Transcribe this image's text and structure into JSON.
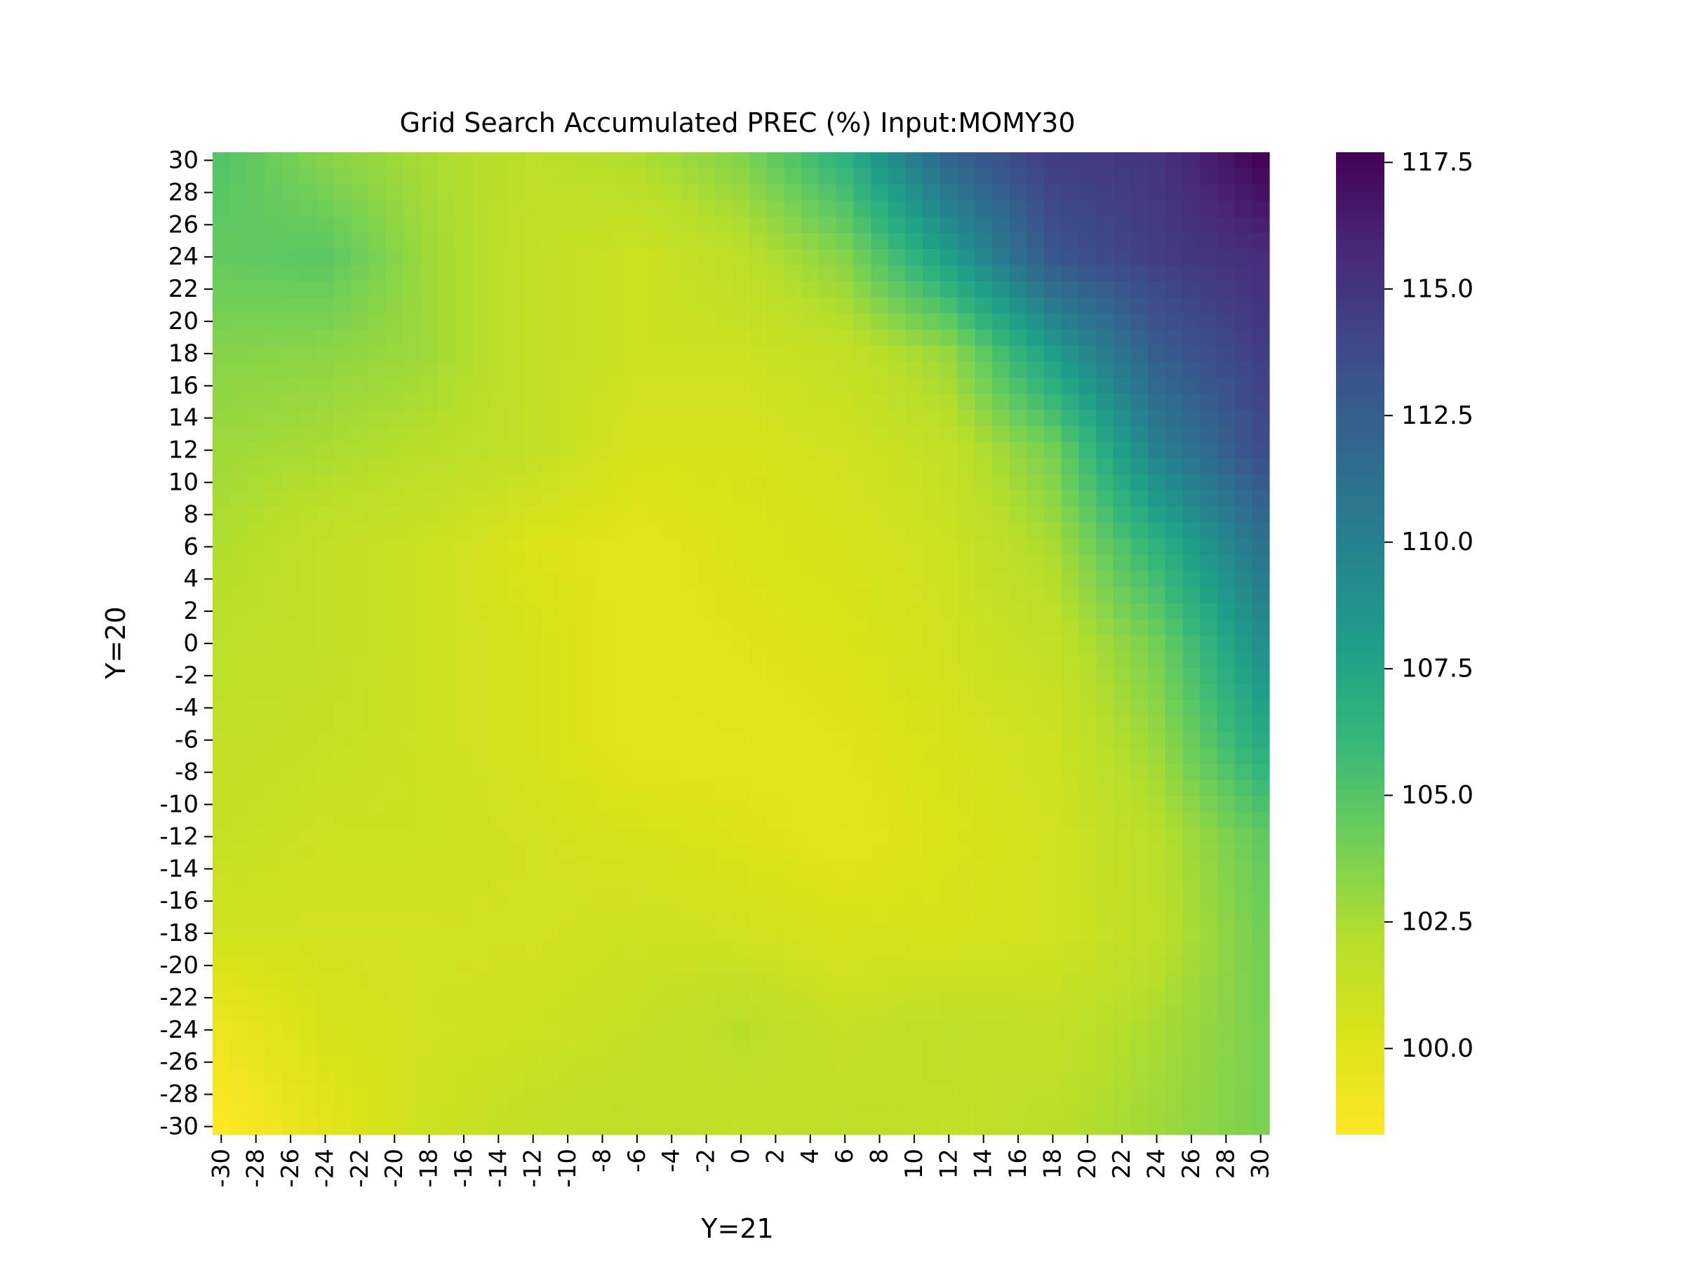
{
  "chart_data": {
    "type": "heatmap",
    "title": "Grid Search Accumulated PREC (%) Input:MOMY30",
    "xlabel": "Y=21",
    "ylabel": "Y=20",
    "x_range": [
      -30,
      30
    ],
    "y_range": [
      -30,
      30
    ],
    "x_tick_labels": [
      "-30",
      "-28",
      "-26",
      "-24",
      "-22",
      "-20",
      "-18",
      "-16",
      "-14",
      "-12",
      "-10",
      "-8",
      "-6",
      "-4",
      "-2",
      "0",
      "2",
      "4",
      "6",
      "8",
      "10",
      "12",
      "14",
      "16",
      "18",
      "20",
      "22",
      "24",
      "26",
      "28",
      "30"
    ],
    "y_tick_labels": [
      "30",
      "28",
      "26",
      "24",
      "22",
      "20",
      "18",
      "16",
      "14",
      "12",
      "10",
      "8",
      "6",
      "4",
      "2",
      "0",
      "-2",
      "-4",
      "-6",
      "-8",
      "-10",
      "-12",
      "-14",
      "-16",
      "-18",
      "-20",
      "-22",
      "-24",
      "-26",
      "-28",
      "-30"
    ],
    "colorbar": {
      "colormap": "viridis_r",
      "vmin": 98.3,
      "vmax": 117.7,
      "tick_labels": [
        "100.0",
        "102.5",
        "105.0",
        "107.5",
        "110.0",
        "112.5",
        "115.0",
        "117.5"
      ],
      "tick_values": [
        100.0,
        102.5,
        105.0,
        107.5,
        110.0,
        112.5,
        115.0,
        117.5
      ]
    },
    "grid": false,
    "colorbar_placement": "right",
    "anchor_rows_note_y_values": [
      30,
      24,
      18,
      12,
      6,
      0,
      -6,
      -12,
      -18,
      -24,
      -30
    ],
    "anchor_cols_x_values": [
      -30,
      -24,
      -18,
      -12,
      -6,
      0,
      6,
      12,
      18,
      24,
      30
    ],
    "anchor_values": [
      [
        105.0,
        103.5,
        102.5,
        101.8,
        102.3,
        103.5,
        106.5,
        112.0,
        114.5,
        115.0,
        117.5
      ],
      [
        104.5,
        104.8,
        102.8,
        101.5,
        101.0,
        101.8,
        103.5,
        108.0,
        113.0,
        114.5,
        115.5
      ],
      [
        103.5,
        103.3,
        102.8,
        101.5,
        101.0,
        101.0,
        101.5,
        103.0,
        108.0,
        112.5,
        114.5
      ],
      [
        102.8,
        102.5,
        102.0,
        101.5,
        100.5,
        100.5,
        100.8,
        101.5,
        104.0,
        110.0,
        113.5
      ],
      [
        102.3,
        101.5,
        101.0,
        100.2,
        99.8,
        100.3,
        100.5,
        101.0,
        102.5,
        106.5,
        111.0
      ],
      [
        101.8,
        101.5,
        101.0,
        100.5,
        99.8,
        100.0,
        100.3,
        100.8,
        101.5,
        104.0,
        109.0
      ],
      [
        101.5,
        101.3,
        101.0,
        100.5,
        99.8,
        99.8,
        100.0,
        100.5,
        101.0,
        103.0,
        107.0
      ],
      [
        101.3,
        101.0,
        101.0,
        100.8,
        100.5,
        100.2,
        99.8,
        100.3,
        100.8,
        102.0,
        104.5
      ],
      [
        100.8,
        100.8,
        100.8,
        100.8,
        101.0,
        100.8,
        100.5,
        100.5,
        100.8,
        101.8,
        104.0
      ],
      [
        99.2,
        100.5,
        100.8,
        101.0,
        101.3,
        102.0,
        101.3,
        101.8,
        101.5,
        102.5,
        103.8
      ],
      [
        98.3,
        99.8,
        101.0,
        101.5,
        101.8,
        101.5,
        101.8,
        101.5,
        102.0,
        102.8,
        103.8
      ]
    ]
  }
}
